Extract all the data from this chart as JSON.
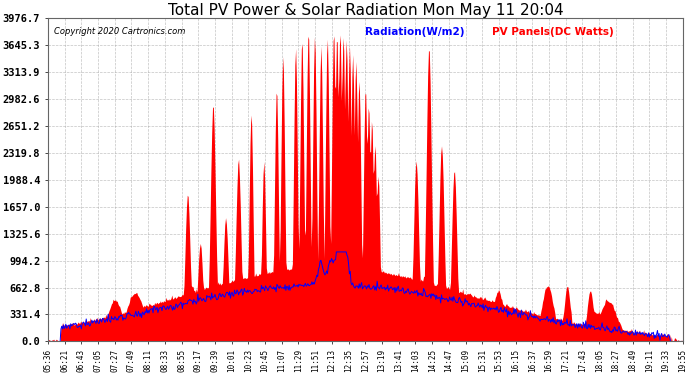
{
  "title": "Total PV Power & Solar Radiation Mon May 11 20:04",
  "copyright": "Copyright 2020 Cartronics.com",
  "legend_radiation": "Radiation(W/m2)",
  "legend_pv": "PV Panels(DC Watts)",
  "y_max": 3976.7,
  "y_ticks": [
    0.0,
    331.4,
    662.8,
    994.2,
    1325.6,
    1657.0,
    1988.4,
    2319.8,
    2651.2,
    2982.6,
    3313.9,
    3645.3,
    3976.7
  ],
  "background_color": "#ffffff",
  "plot_bg_color": "#ffffff",
  "grid_color": "#aaaaaa",
  "red_color": "#ff0000",
  "blue_color": "#0000ff",
  "title_fontsize": 11,
  "x_tick_fontsize": 5.5,
  "y_tick_fontsize": 7.5,
  "x_labels": [
    "05:36",
    "06:21",
    "06:43",
    "07:05",
    "07:27",
    "07:49",
    "08:11",
    "08:33",
    "08:55",
    "09:17",
    "09:39",
    "10:01",
    "10:23",
    "10:45",
    "11:07",
    "11:29",
    "11:51",
    "12:13",
    "12:35",
    "12:57",
    "13:19",
    "13:41",
    "14:03",
    "14:25",
    "14:47",
    "15:09",
    "15:31",
    "15:53",
    "16:15",
    "16:37",
    "16:59",
    "17:21",
    "17:43",
    "18:05",
    "18:27",
    "18:49",
    "19:11",
    "19:33",
    "19:55"
  ]
}
